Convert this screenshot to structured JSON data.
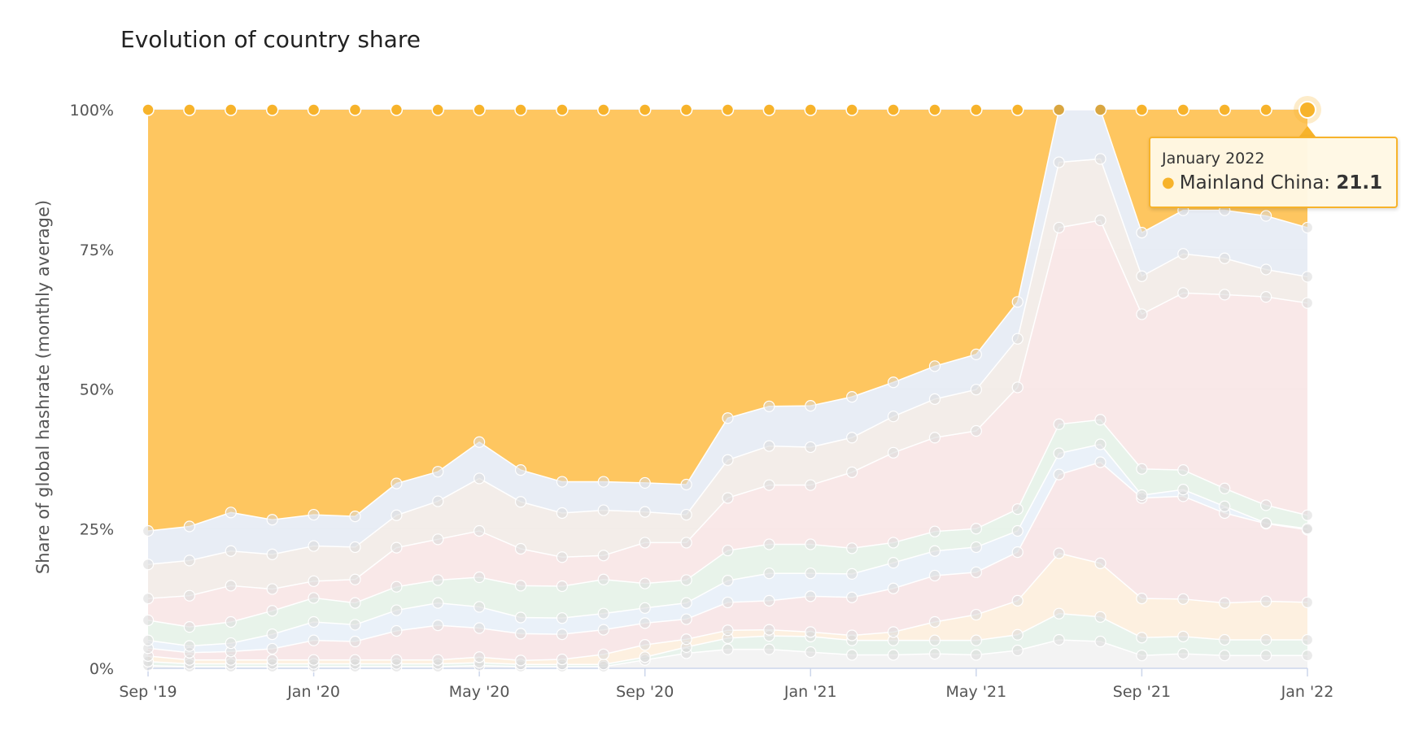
{
  "chart_data": {
    "type": "area",
    "stacking": "percent",
    "title": "Evolution of country share",
    "ylabel": "Share of global hashrate (monthly average)",
    "xlabel": "",
    "ylim": [
      0,
      100
    ],
    "y_ticks": [
      "0%",
      "25%",
      "50%",
      "75%",
      "100%"
    ],
    "y_tick_values": [
      0,
      25,
      50,
      75,
      100
    ],
    "x": [
      "Sep 2019",
      "Oct 2019",
      "Nov 2019",
      "Dec 2019",
      "Jan 2020",
      "Feb 2020",
      "Mar 2020",
      "Apr 2020",
      "May 2020",
      "Jun 2020",
      "Jul 2020",
      "Aug 2020",
      "Sep 2020",
      "Oct 2020",
      "Nov 2020",
      "Dec 2020",
      "Jan 2021",
      "Feb 2021",
      "Mar 2021",
      "Apr 2021",
      "May 2021",
      "Jun 2021",
      "Jul 2021",
      "Aug 2021",
      "Sep 2021",
      "Oct 2021",
      "Nov 2021",
      "Dec 2021",
      "Jan 2022"
    ],
    "x_tick_labels": [
      {
        "index": 0,
        "label": "Sep '19"
      },
      {
        "index": 4,
        "label": "Jan '20"
      },
      {
        "index": 8,
        "label": "May '20"
      },
      {
        "index": 12,
        "label": "Sep '20"
      },
      {
        "index": 16,
        "label": "Jan '21"
      },
      {
        "index": 20,
        "label": "May '21"
      },
      {
        "index": 24,
        "label": "Sep '21"
      },
      {
        "index": 28,
        "label": "Jan '22"
      }
    ],
    "cumulative_boundaries": [
      {
        "fill": "#f2f2f2",
        "values": [
          0.5,
          0.3,
          0.3,
          0.3,
          0.3,
          0.3,
          0.3,
          0.3,
          0.5,
          0.3,
          0.3,
          0.3,
          1.5,
          2.7,
          3.4,
          3.4,
          2.9,
          2.4,
          2.4,
          2.6,
          2.4,
          3.2,
          5.1,
          4.8,
          2.3,
          2.6,
          2.3,
          2.3,
          2.3
        ]
      },
      {
        "fill": "#e6f2ea",
        "values": [
          1.2,
          0.8,
          0.8,
          0.8,
          0.8,
          0.8,
          0.8,
          0.8,
          1.0,
          0.7,
          0.7,
          0.7,
          2.0,
          3.8,
          5.4,
          5.8,
          5.7,
          5.0,
          5.0,
          5.0,
          5.0,
          6.0,
          9.8,
          9.2,
          5.5,
          5.7,
          5.1,
          5.1,
          5.1
        ]
      },
      {
        "fill": "#fdeedd",
        "values": [
          2.2,
          1.5,
          1.5,
          1.5,
          1.5,
          1.5,
          1.5,
          1.5,
          2.0,
          1.4,
          1.6,
          2.5,
          4.2,
          5.2,
          6.8,
          6.9,
          6.5,
          5.9,
          6.5,
          8.3,
          9.6,
          12.1,
          20.6,
          18.8,
          12.5,
          12.4,
          11.7,
          12.0,
          11.8
        ]
      },
      {
        "fill": "#f7e4e6",
        "values": [
          3.6,
          2.8,
          3.0,
          3.5,
          5.0,
          4.8,
          6.7,
          7.7,
          7.2,
          6.2,
          6.1,
          6.9,
          8.1,
          8.8,
          11.8,
          12.1,
          12.9,
          12.7,
          14.3,
          16.6,
          17.2,
          20.8,
          34.7,
          36.9,
          30.5,
          30.8,
          27.8,
          25.9,
          24.8
        ]
      },
      {
        "fill": "#e8f0f8",
        "values": [
          5.0,
          4.0,
          4.5,
          6.1,
          8.3,
          7.8,
          10.4,
          11.7,
          11.0,
          9.1,
          9.0,
          9.8,
          10.8,
          11.7,
          15.7,
          17.0,
          17.0,
          16.9,
          18.9,
          21.0,
          21.7,
          24.6,
          38.5,
          40.1,
          31.0,
          32.0,
          29.0,
          26.0,
          25.0
        ]
      },
      {
        "fill": "#e5f2e8",
        "values": [
          8.6,
          7.4,
          8.3,
          10.3,
          12.6,
          11.7,
          14.6,
          15.8,
          16.3,
          14.8,
          14.7,
          15.9,
          15.2,
          15.8,
          21.1,
          22.2,
          22.2,
          21.5,
          22.5,
          24.5,
          25.0,
          28.5,
          43.7,
          44.5,
          35.7,
          35.5,
          32.2,
          29.2,
          27.4
        ]
      },
      {
        "fill": "#f8e6e6",
        "values": [
          12.5,
          13.0,
          14.8,
          14.2,
          15.6,
          15.9,
          21.6,
          23.1,
          24.6,
          21.4,
          19.9,
          20.2,
          22.5,
          22.5,
          30.5,
          32.8,
          32.8,
          35.1,
          38.6,
          41.3,
          42.5,
          50.3,
          78.9,
          80.2,
          63.4,
          67.2,
          66.9,
          66.5,
          65.4
        ]
      },
      {
        "fill": "#f2ebe7",
        "values": [
          18.6,
          19.3,
          21.0,
          20.4,
          21.9,
          21.7,
          27.4,
          29.9,
          34.0,
          29.8,
          27.8,
          28.3,
          28.0,
          27.5,
          37.3,
          39.8,
          39.6,
          41.3,
          45.1,
          48.2,
          49.9,
          59.0,
          90.6,
          91.2,
          70.2,
          74.2,
          73.4,
          71.4,
          70.1
        ]
      },
      {
        "fill": "#e6ebf4",
        "values": [
          24.6,
          25.4,
          27.9,
          26.6,
          27.5,
          27.2,
          33.1,
          35.2,
          40.5,
          35.5,
          33.4,
          33.4,
          33.2,
          32.9,
          44.8,
          46.9,
          47.0,
          48.6,
          51.2,
          54.1,
          56.2,
          65.6,
          100,
          100,
          78.0,
          82.0,
          82.0,
          81.0,
          78.9
        ]
      }
    ],
    "series": [
      {
        "name": "Mainland China",
        "color": "#fec660",
        "dot_color": "#f7b32b",
        "values": [
          75.4,
          74.6,
          72.1,
          73.4,
          72.5,
          72.8,
          66.9,
          64.8,
          59.5,
          64.5,
          66.6,
          66.6,
          66.8,
          67.1,
          55.2,
          53.1,
          53.0,
          51.4,
          48.8,
          45.9,
          43.8,
          34.4,
          0,
          0,
          22.0,
          18.0,
          18.0,
          19.0,
          21.1
        ]
      }
    ],
    "grid": true,
    "legend": "none"
  },
  "tooltip": {
    "date": "January 2022",
    "series_name": "Mainland China",
    "separator": ":",
    "value": "21.1",
    "point_index": 28
  }
}
